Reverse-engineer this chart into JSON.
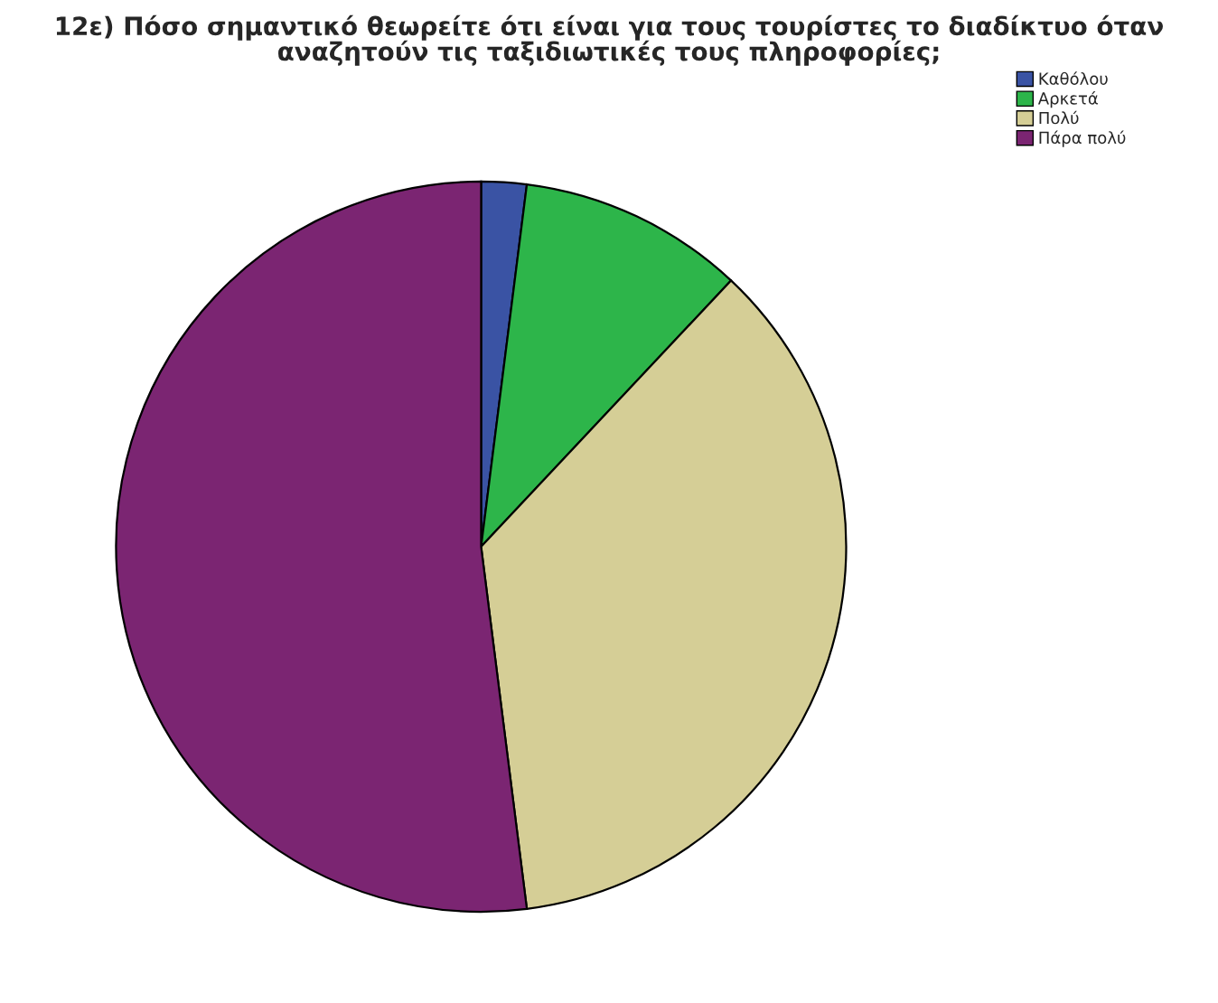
{
  "chart_data": {
    "type": "pie",
    "title": "12ε) Πόσο σημαντικό θεωρείτε ότι είναι για τους τουρίστες το διαδίκτυο όταν\nαναζητούν τις ταξιδιωτικές τους πληροφορίες;",
    "categories": [
      "Καθόλου",
      "Αρκετά",
      "Πολύ",
      "Πάρα πολύ"
    ],
    "values": [
      2,
      10,
      36,
      52
    ],
    "colors": [
      "#3a53a4",
      "#2db54a",
      "#d5ce96",
      "#7b2572"
    ],
    "legend": "top right"
  }
}
